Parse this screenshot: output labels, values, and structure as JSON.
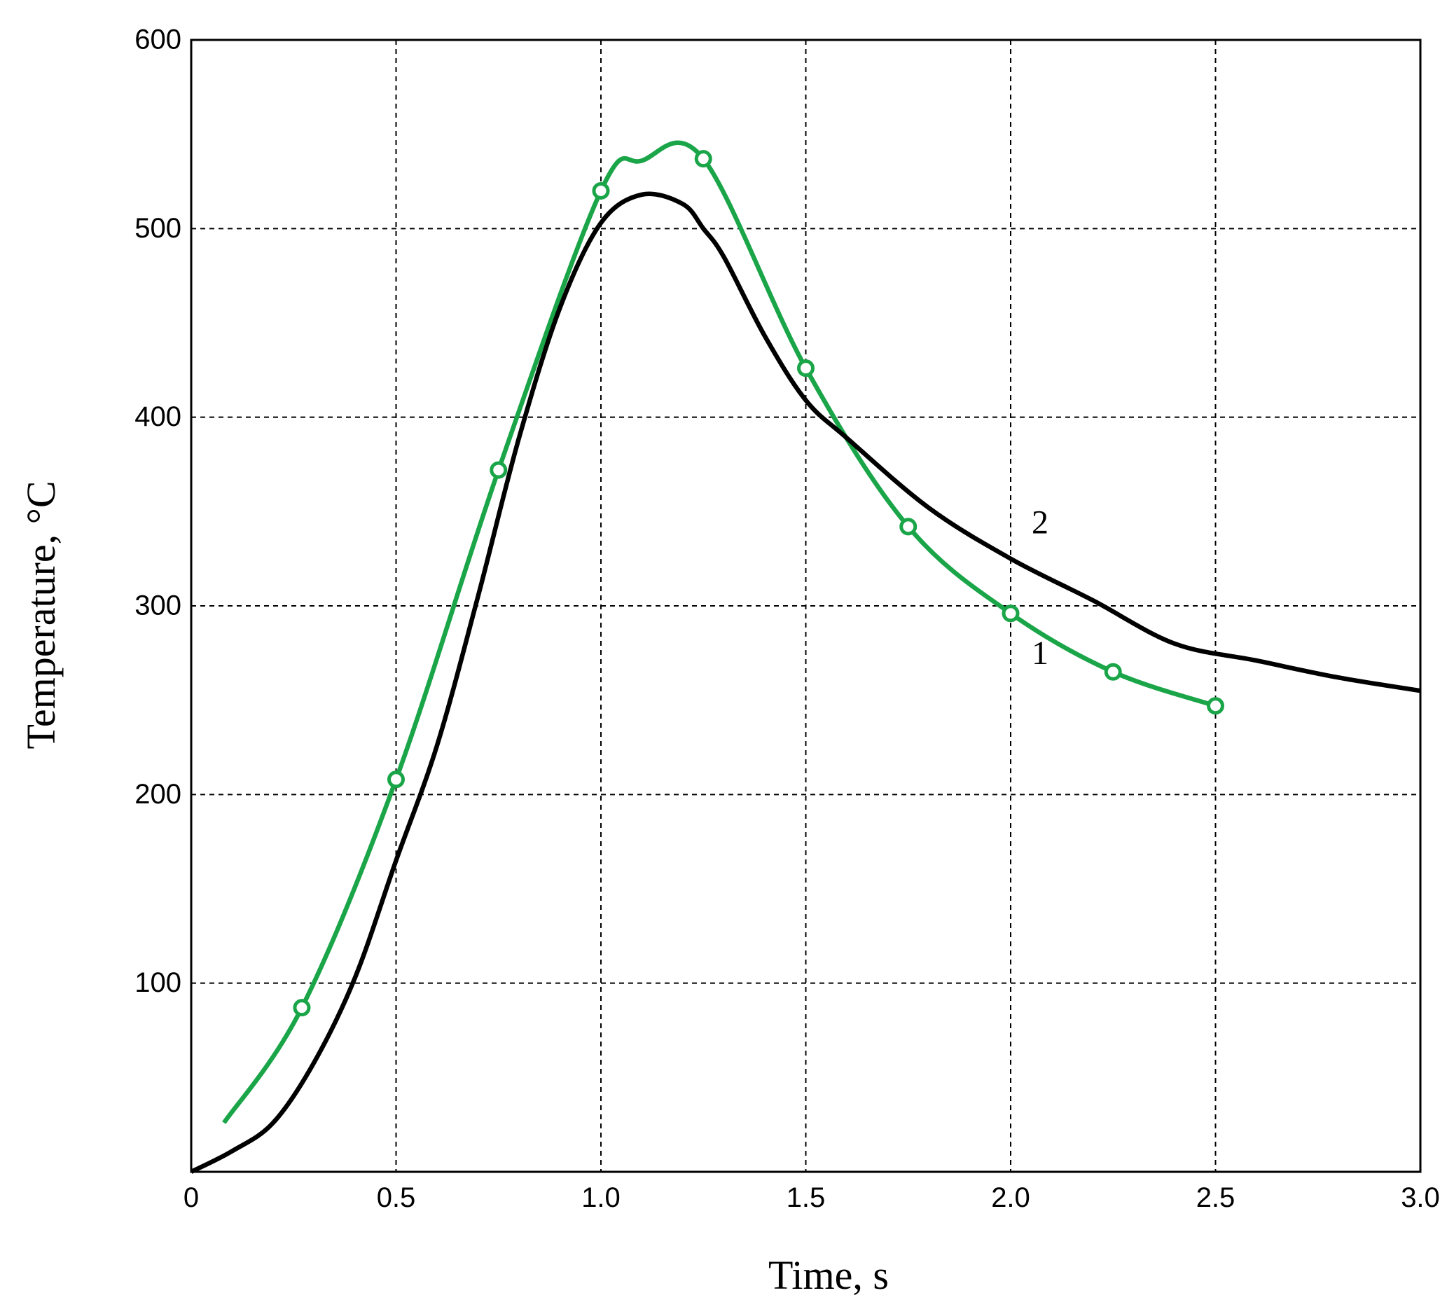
{
  "chart_data": {
    "type": "line",
    "x_label": "Time, s",
    "y_label": "Temperature, °C",
    "xlim": [
      0,
      3
    ],
    "ylim": [
      0,
      600
    ],
    "xticks": [
      0,
      0.5,
      {
        "value": 1,
        "label": "1.0"
      },
      1.5,
      {
        "value": 2,
        "label": "2.0"
      },
      2.5,
      {
        "value": 3,
        "label": "3.0"
      }
    ],
    "yticks": [
      100,
      200,
      300,
      400,
      500,
      600
    ],
    "grid": true,
    "series": [
      {
        "name": "1",
        "color": "#1aa548",
        "x": [
          0.08,
          0.27,
          0.5,
          0.75,
          1.0,
          1.1,
          1.25,
          1.5,
          1.75,
          2.0,
          2.25,
          2.5
        ],
        "values": [
          26,
          87,
          208,
          372,
          520,
          536,
          537,
          426,
          342,
          296,
          265,
          247
        ],
        "markers": [
          false,
          true,
          true,
          true,
          true,
          false,
          true,
          true,
          true,
          true,
          true,
          true
        ]
      },
      {
        "name": "2",
        "color": "#000000",
        "x": [
          0,
          0.1,
          0.2,
          0.3,
          0.4,
          0.5,
          0.6,
          0.7,
          0.8,
          0.9,
          1.0,
          1.1,
          1.2,
          1.25,
          1.3,
          1.4,
          1.5,
          1.6,
          1.8,
          2.0,
          2.2,
          2.4,
          2.6,
          2.8,
          3.0
        ],
        "values": [
          0,
          11,
          26,
          58,
          103,
          165,
          226,
          305,
          389,
          458,
          503,
          518,
          513,
          500,
          485,
          443,
          409,
          389,
          352,
          325,
          303,
          280,
          271,
          262,
          255
        ]
      }
    ]
  }
}
